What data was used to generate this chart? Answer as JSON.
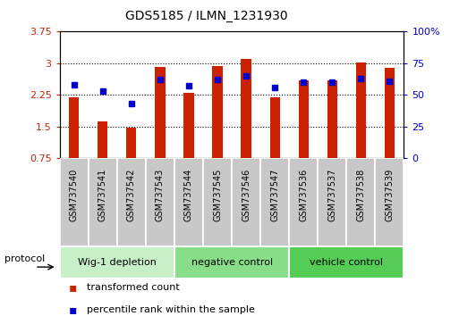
{
  "title": "GDS5185 / ILMN_1231930",
  "samples": [
    "GSM737540",
    "GSM737541",
    "GSM737542",
    "GSM737543",
    "GSM737544",
    "GSM737545",
    "GSM737546",
    "GSM737547",
    "GSM737536",
    "GSM737537",
    "GSM737538",
    "GSM737539"
  ],
  "bar_values": [
    2.2,
    1.62,
    1.47,
    2.92,
    2.3,
    2.93,
    3.1,
    2.2,
    2.6,
    2.6,
    3.02,
    2.88
  ],
  "dot_values": [
    58,
    53,
    43,
    62,
    57,
    62,
    65,
    56,
    60,
    60,
    63,
    61
  ],
  "bar_color": "#cc2200",
  "dot_color": "#0000cc",
  "ylim_left": [
    0.75,
    3.75
  ],
  "ylim_right": [
    0,
    100
  ],
  "yticks_left": [
    0.75,
    1.5,
    2.25,
    3.0,
    3.75
  ],
  "yticks_right": [
    0,
    25,
    50,
    75,
    100
  ],
  "ytick_labels_left": [
    "0.75",
    "1.5",
    "2.25",
    "3",
    "3.75"
  ],
  "ytick_labels_right": [
    "0",
    "25",
    "50",
    "75",
    "100%"
  ],
  "groups": [
    {
      "label": "Wig-1 depletion",
      "start": 0,
      "end": 4,
      "color": "#c8f0c8"
    },
    {
      "label": "negative control",
      "start": 4,
      "end": 8,
      "color": "#88dd88"
    },
    {
      "label": "vehicle control",
      "start": 8,
      "end": 12,
      "color": "#55cc55"
    }
  ],
  "protocol_label": "protocol",
  "legend": [
    {
      "label": "transformed count",
      "color": "#cc2200"
    },
    {
      "label": "percentile rank within the sample",
      "color": "#0000cc"
    }
  ],
  "sample_box_color": "#c8c8c8",
  "background_color": "#ffffff"
}
